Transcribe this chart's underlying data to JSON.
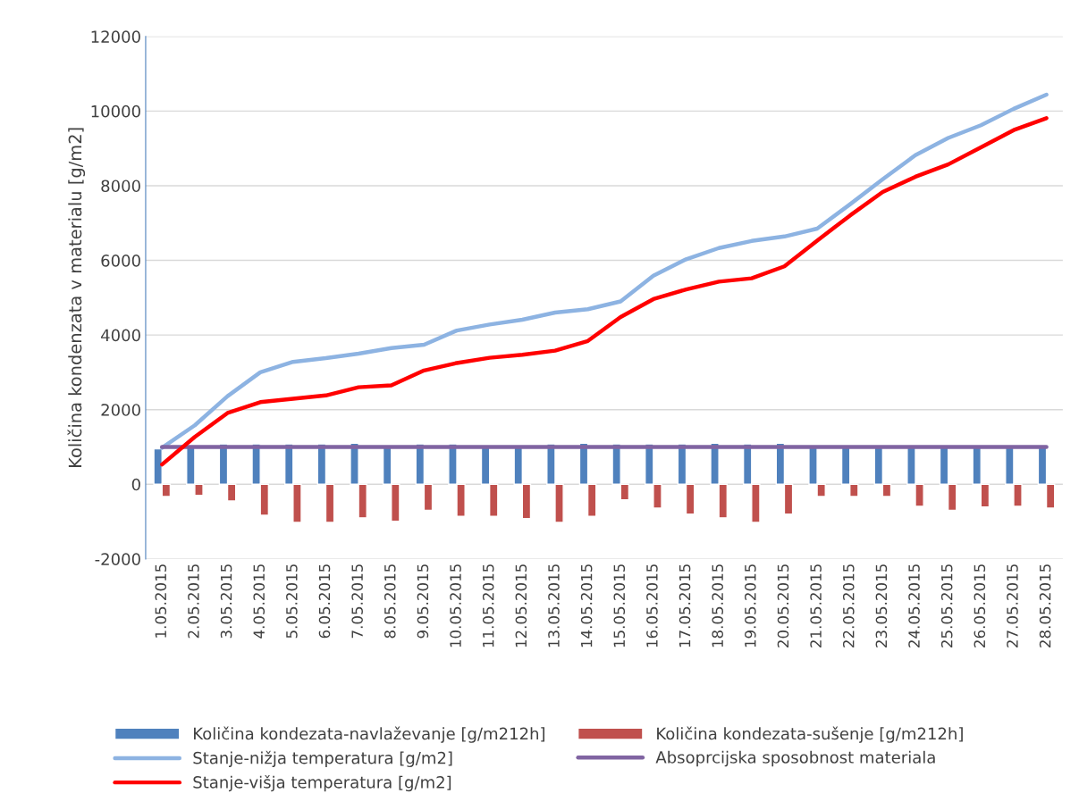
{
  "chart_data": {
    "type": "bar",
    "ylabel": "Količina kondenzata v materialu [g/m2]",
    "categories": [
      "1.05.2015",
      "2.05.2015",
      "3.05.2015",
      "4.05.2015",
      "5.05.2015",
      "6.05.2015",
      "7.05.2015",
      "8.05.2015",
      "9.05.2015",
      "10.05.2015",
      "11.05.2015",
      "12.05.2015",
      "13.05.2015",
      "14.05.2015",
      "15.05.2015",
      "16.05.2015",
      "17.05.2015",
      "18.05.2015",
      "19.05.2015",
      "20.05.2015",
      "21.05.2015",
      "22.05.2015",
      "23.05.2015",
      "24.05.2015",
      "25.05.2015",
      "26.05.2015",
      "27.05.2015",
      "28.05.2015"
    ],
    "series": [
      {
        "name": "Količina kondezata-navlaževanje [g/m212h]",
        "color": "#4f81bd",
        "values": [
          950,
          1000,
          1080,
          1080,
          1080,
          1080,
          1100,
          1000,
          1080,
          1080,
          1000,
          1000,
          1080,
          1100,
          1080,
          1080,
          1080,
          1100,
          1080,
          1100,
          1000,
          1000,
          1000,
          1000,
          1000,
          1000,
          1000,
          1000
        ]
      },
      {
        "name": "Količina kondezata-sušenje [g/m212h]",
        "color": "#c0504d",
        "values": [
          -330,
          -300,
          -450,
          -830,
          -1020,
          -1020,
          -900,
          -990,
          -700,
          -860,
          -860,
          -920,
          -1020,
          -860,
          -420,
          -640,
          -800,
          -900,
          -1020,
          -800,
          -330,
          -330,
          -330,
          -590,
          -700,
          -610,
          -590,
          -640
        ]
      },
      {
        "name": "Stanje-nižja temperatura [g/m2]",
        "type": "line",
        "color": "#8db3e2",
        "values": [
          980,
          1580,
          2360,
          3000,
          3280,
          3380,
          3500,
          3650,
          3740,
          4120,
          4280,
          4410,
          4600,
          4690,
          4900,
          5590,
          6030,
          6330,
          6520,
          6640,
          6850,
          7500,
          8170,
          8820,
          9280,
          9620,
          10060,
          10440
        ]
      },
      {
        "name": "Absoprcijska sposobnost materiala",
        "type": "line",
        "color": "#8064a2",
        "values": [
          1000,
          1000,
          1000,
          1000,
          1000,
          1000,
          1000,
          1000,
          1000,
          1000,
          1000,
          1000,
          1000,
          1000,
          1000,
          1000,
          1000,
          1000,
          1000,
          1000,
          1000,
          1000,
          1000,
          1000,
          1000,
          1000,
          1000,
          1000
        ]
      },
      {
        "name": "Stanje-višja temperatura [g/m2]",
        "type": "line",
        "color": "#ff0000",
        "values": [
          530,
          1270,
          1910,
          2200,
          2290,
          2380,
          2600,
          2650,
          3050,
          3250,
          3390,
          3470,
          3580,
          3840,
          4480,
          4960,
          5220,
          5430,
          5520,
          5840,
          6530,
          7200,
          7830,
          8240,
          8570,
          9030,
          9490,
          9810
        ]
      }
    ],
    "ylim": [
      -2000,
      12000
    ],
    "yticks": [
      -2000,
      0,
      2000,
      4000,
      6000,
      8000,
      10000,
      12000
    ],
    "grid": "y",
    "legend": "bottom",
    "marker": "none",
    "line_style": "solid"
  }
}
